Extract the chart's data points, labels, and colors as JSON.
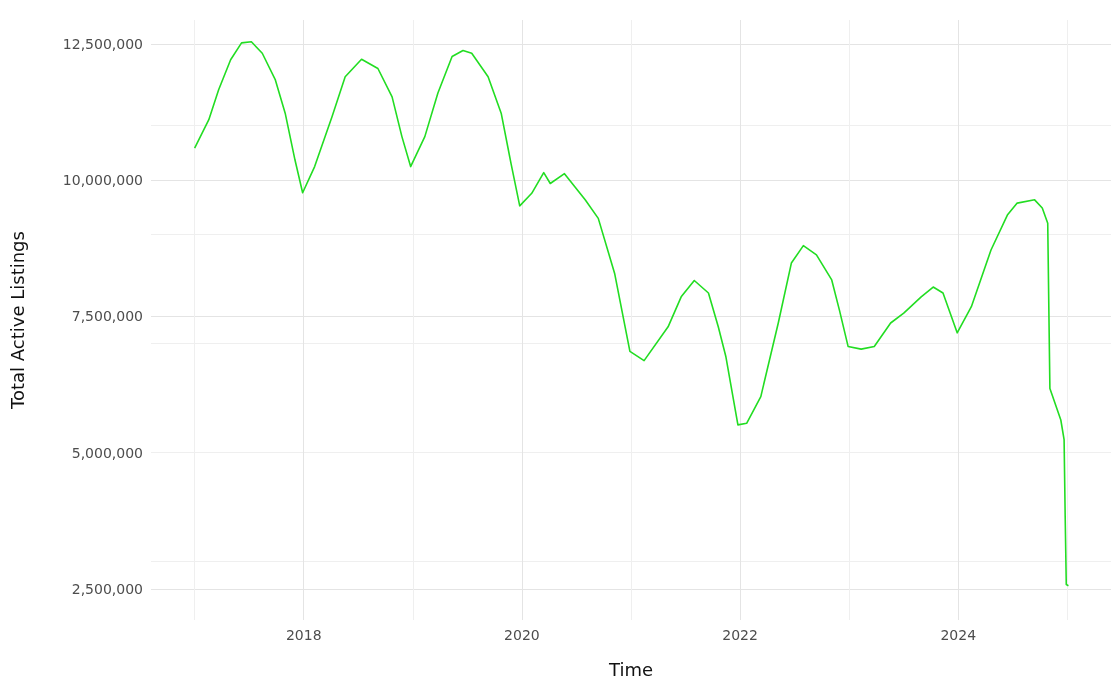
{
  "chart_data": {
    "type": "line",
    "xlabel": "Time",
    "ylabel": "Total Active Listings",
    "x": [
      2017.0,
      2017.13,
      2017.22,
      2017.33,
      2017.43,
      2017.52,
      2017.62,
      2017.74,
      2017.83,
      2017.92,
      2017.99,
      2018.1,
      2018.26,
      2018.38,
      2018.53,
      2018.68,
      2018.81,
      2018.9,
      2018.98,
      2019.11,
      2019.23,
      2019.36,
      2019.46,
      2019.54,
      2019.69,
      2019.81,
      2019.9,
      2019.98,
      2020.09,
      2020.2,
      2020.26,
      2020.39,
      2020.58,
      2020.7,
      2020.85,
      2020.99,
      2021.12,
      2021.34,
      2021.46,
      2021.58,
      2021.71,
      2021.8,
      2021.87,
      2021.98,
      2022.06,
      2022.19,
      2022.35,
      2022.47,
      2022.58,
      2022.7,
      2022.84,
      2022.91,
      2022.99,
      2023.11,
      2023.23,
      2023.38,
      2023.5,
      2023.66,
      2023.77,
      2023.86,
      2023.99,
      2024.12,
      2024.3,
      2024.45,
      2024.54,
      2024.7,
      2024.77,
      2024.82,
      2024.83,
      2024.84,
      2024.94,
      2024.97,
      2024.98,
      2024.99,
      2025.01
    ],
    "series": [
      {
        "color": "#22dd22",
        "values": [
          10590000,
          11110000,
          11660000,
          12210000,
          12520000,
          12540000,
          12330000,
          11840000,
          11230000,
          10370000,
          9770000,
          10250000,
          11170000,
          11900000,
          12220000,
          12050000,
          11530000,
          10800000,
          10250000,
          10800000,
          11600000,
          12270000,
          12380000,
          12330000,
          11900000,
          11230000,
          10310000,
          9530000,
          9760000,
          10140000,
          9940000,
          10120000,
          9640000,
          9300000,
          8290000,
          6860000,
          6690000,
          7310000,
          7860000,
          8160000,
          7930000,
          7310000,
          6760000,
          5510000,
          5540000,
          6030000,
          7380000,
          8480000,
          8800000,
          8630000,
          8170000,
          7620000,
          6950000,
          6900000,
          6950000,
          7380000,
          7560000,
          7860000,
          8040000,
          7930000,
          7200000,
          7680000,
          8720000,
          9360000,
          9580000,
          9640000,
          9490000,
          9210000,
          7680000,
          6180000,
          5600000,
          5240000,
          3830000,
          2580000,
          2560000
        ]
      }
    ],
    "xlim": [
      2016.6,
      2025.4
    ],
    "xticks": [
      2018,
      2020,
      2022,
      2024
    ],
    "ylim": [
      1930000,
      12940000
    ],
    "yticks": [
      {
        "value": 2500000,
        "label": "2,500,000"
      },
      {
        "value": 5000000,
        "label": "5,000,000"
      },
      {
        "value": 7500000,
        "label": "7,500,000"
      },
      {
        "value": 10000000,
        "label": "10,000,000"
      },
      {
        "value": 12500000,
        "label": "12,500,000"
      }
    ],
    "grid": true,
    "marker": "none",
    "line_style": "solid"
  }
}
